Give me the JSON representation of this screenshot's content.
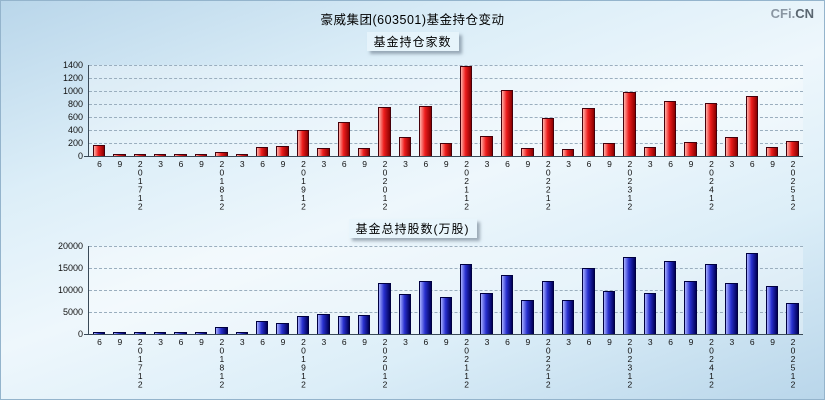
{
  "page": {
    "title": "豪威集团(603501)基金持仓变动",
    "logo": {
      "prefix": "CFi.",
      "suffix": "CN"
    }
  },
  "chart_data": [
    {
      "type": "bar",
      "title": "基金持仓家数",
      "bar_color": "#ee1c1c",
      "ylim": [
        0,
        1400
      ],
      "yticks": [
        0,
        200,
        400,
        600,
        800,
        1000,
        1200,
        1400
      ],
      "grid": "dashed-horizontal",
      "categories": [
        "6",
        "9",
        "201712",
        "3",
        "6",
        "9",
        "201812",
        "3",
        "6",
        "9",
        "201912",
        "3",
        "6",
        "9",
        "202012",
        "3",
        "6",
        "9",
        "202112",
        "3",
        "6",
        "9",
        "202212",
        "3",
        "6",
        "9",
        "202312",
        "3",
        "6",
        "9",
        "202412",
        "3",
        "6",
        "9",
        "202512"
      ],
      "values": [
        175,
        20,
        30,
        20,
        15,
        10,
        55,
        25,
        145,
        160,
        400,
        120,
        530,
        125,
        760,
        290,
        770,
        205,
        1380,
        310,
        1020,
        130,
        590,
        115,
        740,
        195,
        990,
        145,
        840,
        210,
        815,
        285,
        920,
        145,
        230
      ]
    },
    {
      "type": "bar",
      "title": "基金总持股数(万股)",
      "bar_color": "#2830d0",
      "ylim": [
        0,
        20000
      ],
      "yticks": [
        0,
        5000,
        10000,
        15000,
        20000
      ],
      "grid": "dashed-horizontal",
      "categories": [
        "6",
        "9",
        "201712",
        "3",
        "6",
        "9",
        "201812",
        "3",
        "6",
        "9",
        "201912",
        "3",
        "6",
        "9",
        "202012",
        "3",
        "6",
        "9",
        "202112",
        "3",
        "6",
        "9",
        "202212",
        "3",
        "6",
        "9",
        "202312",
        "3",
        "6",
        "9",
        "202412",
        "3",
        "6",
        "9",
        "202512"
      ],
      "values": [
        250,
        100,
        150,
        100,
        80,
        100,
        1700,
        350,
        2900,
        2600,
        4200,
        4500,
        4200,
        4400,
        11500,
        9200,
        12100,
        8500,
        15800,
        9400,
        13300,
        7800,
        12000,
        7700,
        14900,
        9700,
        17500,
        9400,
        16700,
        12000,
        16000,
        11500,
        18300,
        11000,
        7000
      ]
    }
  ]
}
